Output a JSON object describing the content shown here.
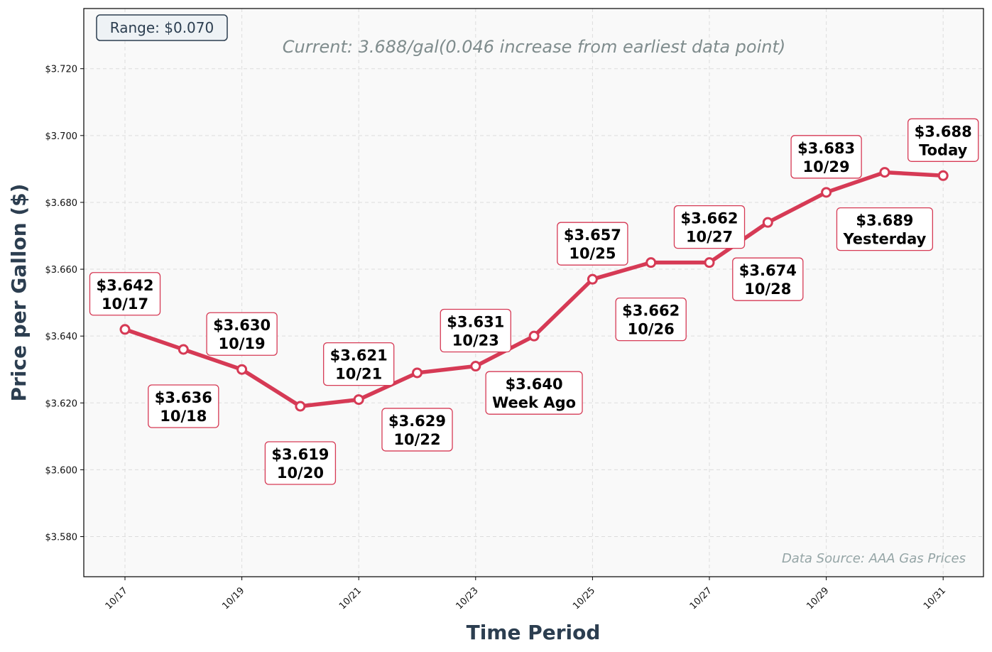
{
  "chart_data": {
    "type": "line",
    "title": "",
    "subtitle": "Current: 3.688/gal(0.046 increase from earliest data point)",
    "xlabel": "Time Period",
    "ylabel": "Price per Gallon ($)",
    "range_badge": "Range: $0.070",
    "source_note": "Data Source: AAA Gas Prices",
    "ylim": [
      3.568,
      3.738
    ],
    "y_ticks": [
      3.58,
      3.6,
      3.62,
      3.64,
      3.66,
      3.68,
      3.7,
      3.72
    ],
    "y_tick_labels": [
      "$3.580",
      "$3.600",
      "$3.620",
      "$3.640",
      "$3.660",
      "$3.680",
      "$3.700",
      "$3.720"
    ],
    "x_tick_labels": [
      "10/17",
      "10/19",
      "10/21",
      "10/23",
      "10/25",
      "10/27",
      "10/29",
      "10/31"
    ],
    "grid": true,
    "line_color": "#d63a55",
    "points": [
      {
        "x": "10/17",
        "y": 3.642,
        "price": "$3.642",
        "label": "10/17",
        "pos": "above"
      },
      {
        "x": "10/18",
        "y": 3.636,
        "price": "$3.636",
        "label": "10/18",
        "pos": "below"
      },
      {
        "x": "10/19",
        "y": 3.63,
        "price": "$3.630",
        "label": "10/19",
        "pos": "above"
      },
      {
        "x": "10/20",
        "y": 3.619,
        "price": "$3.619",
        "label": "10/20",
        "pos": "below"
      },
      {
        "x": "10/21",
        "y": 3.621,
        "price": "$3.621",
        "label": "10/21",
        "pos": "above"
      },
      {
        "x": "10/22",
        "y": 3.629,
        "price": "$3.629",
        "label": "10/22",
        "pos": "below"
      },
      {
        "x": "10/23",
        "y": 3.631,
        "price": "$3.631",
        "label": "10/23",
        "pos": "above"
      },
      {
        "x": "10/24",
        "y": 3.64,
        "price": "$3.640",
        "label": "Week Ago",
        "pos": "below"
      },
      {
        "x": "10/25",
        "y": 3.657,
        "price": "$3.657",
        "label": "10/25",
        "pos": "above"
      },
      {
        "x": "10/26",
        "y": 3.662,
        "price": "$3.662",
        "label": "10/26",
        "pos": "below"
      },
      {
        "x": "10/27",
        "y": 3.662,
        "price": "$3.662",
        "label": "10/27",
        "pos": "above"
      },
      {
        "x": "10/28",
        "y": 3.674,
        "price": "$3.674",
        "label": "10/28",
        "pos": "below"
      },
      {
        "x": "10/29",
        "y": 3.683,
        "price": "$3.683",
        "label": "10/29",
        "pos": "above"
      },
      {
        "x": "10/30",
        "y": 3.689,
        "price": "$3.689",
        "label": "Yesterday",
        "pos": "below"
      },
      {
        "x": "10/31",
        "y": 3.688,
        "price": "$3.688",
        "label": "Today",
        "pos": "above"
      }
    ]
  }
}
